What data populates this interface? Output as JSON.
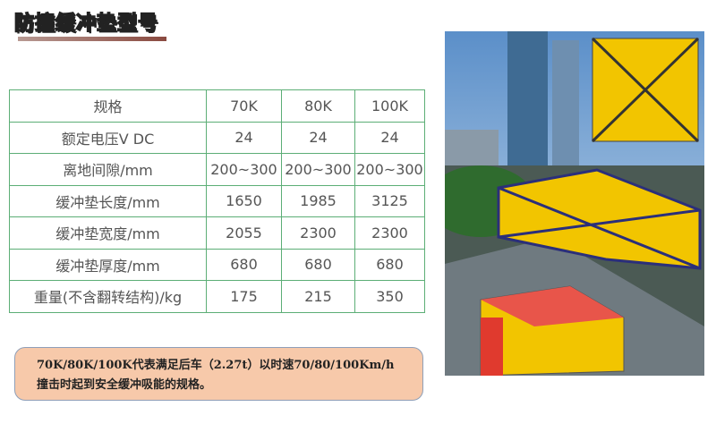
{
  "title": "防撞缓冲垫型号",
  "table": {
    "header": [
      "规格",
      "70K",
      "80K",
      "100K"
    ],
    "rows": [
      [
        "额定电压V DC",
        "24",
        "24",
        "24"
      ],
      [
        "离地间隙/mm",
        "200~300",
        "200~300",
        "200~300"
      ],
      [
        "缓冲垫长度/mm",
        "1650",
        "1985",
        "3125"
      ],
      [
        "缓冲垫宽度/mm",
        "2055",
        "2300",
        "2300"
      ],
      [
        "缓冲垫厚度/mm",
        "680",
        "680",
        "680"
      ],
      [
        "重量(不含翻转结构)/kg",
        "175",
        "215",
        "350"
      ]
    ]
  },
  "note": {
    "line1": "70K/80K/100K代表满足后车（2.27t）以时速70/80/100Km/h",
    "line2": "撞击时起到安全缓冲吸能的规格。"
  },
  "colors": {
    "table_border": "#5cae76",
    "note_bg": "#f7c9aa",
    "cushion_yellow": "#f2c500"
  }
}
